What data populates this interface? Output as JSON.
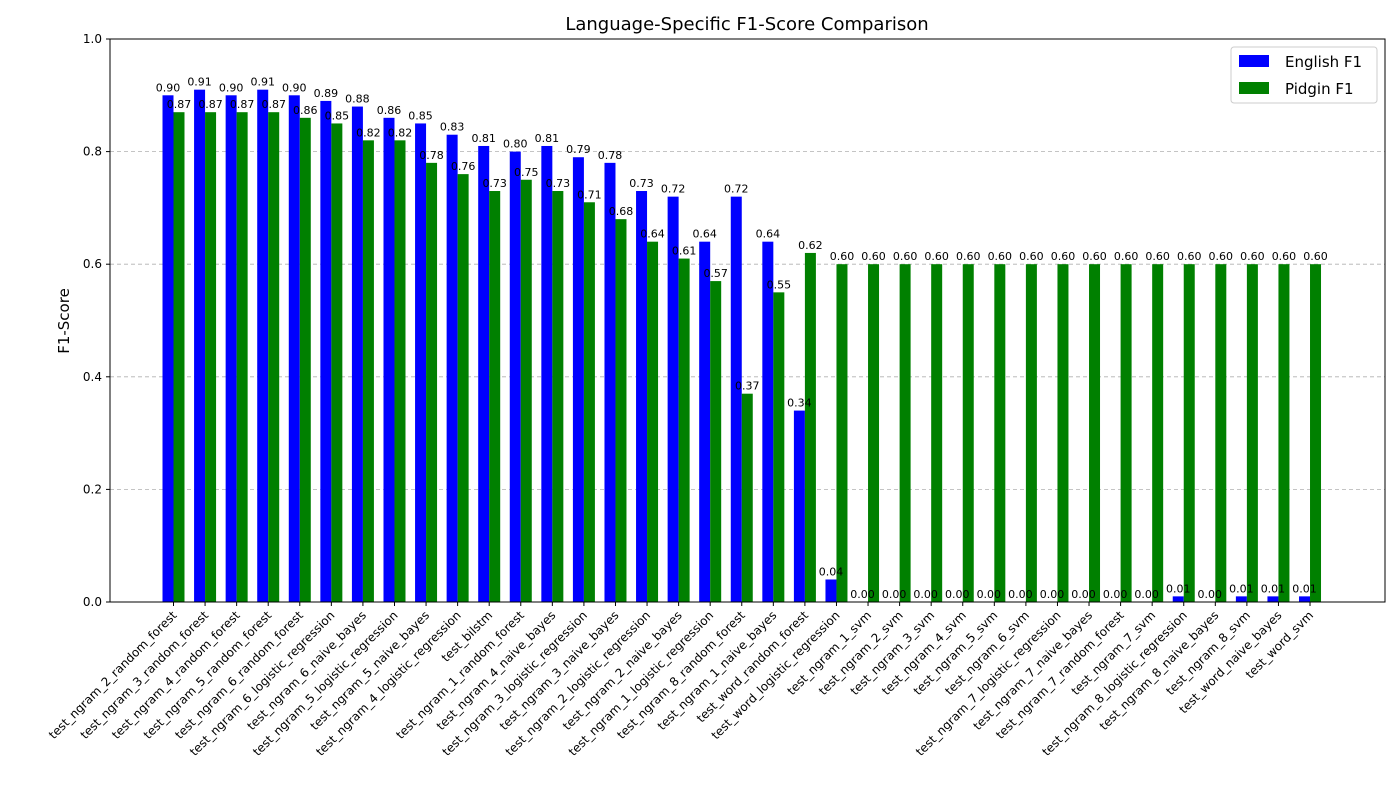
{
  "chart_data": {
    "type": "bar",
    "title": "Language-Specific F1-Score Comparison",
    "xlabel": "",
    "ylabel": "F1-Score",
    "ylim": [
      0,
      1.0
    ],
    "yticks": [
      "0.0",
      "0.2",
      "0.4",
      "0.6",
      "0.8",
      "1.0"
    ],
    "grid": "y-dashed",
    "legend_position": "top-right",
    "categories": [
      "test_ngram_2_random_forest",
      "test_ngram_3_random_forest",
      "test_ngram_4_random_forest",
      "test_ngram_5_random_forest",
      "test_ngram_6_random_forest",
      "test_ngram_6_logistic_regression",
      "test_ngram_6_naive_bayes",
      "test_ngram_5_logistic_regression",
      "test_ngram_5_naive_bayes",
      "test_ngram_4_logistic_regression",
      "test_bilstm",
      "test_ngram_1_random_forest",
      "test_ngram_4_naive_bayes",
      "test_ngram_3_logistic_regression",
      "test_ngram_3_naive_bayes",
      "test_ngram_2_logistic_regression",
      "test_ngram_2_naive_bayes",
      "test_ngram_1_logistic_regression",
      "test_ngram_8_random_forest",
      "test_ngram_1_naive_bayes",
      "test_word_random_forest",
      "test_word_logistic_regression",
      "test_ngram_1_svm",
      "test_ngram_2_svm",
      "test_ngram_3_svm",
      "test_ngram_4_svm",
      "test_ngram_5_svm",
      "test_ngram_6_svm",
      "test_ngram_7_logistic_regression",
      "test_ngram_7_naive_bayes",
      "test_ngram_7_random_forest",
      "test_ngram_7_svm",
      "test_ngram_8_logistic_regression",
      "test_ngram_8_naive_bayes",
      "test_ngram_8_svm",
      "test_word_naive_bayes",
      "test_word_svm"
    ],
    "series": [
      {
        "name": "English F1",
        "color": "#0000ff",
        "values": [
          0.9,
          0.91,
          0.9,
          0.91,
          0.9,
          0.89,
          0.88,
          0.86,
          0.85,
          0.83,
          0.81,
          0.8,
          0.81,
          0.79,
          0.78,
          0.73,
          0.72,
          0.64,
          0.72,
          0.64,
          0.34,
          0.04,
          0.0,
          0.0,
          0.0,
          0.0,
          0.0,
          0.0,
          0.0,
          0.0,
          0.0,
          0.0,
          0.01,
          0.0,
          0.01,
          0.01,
          0.01
        ]
      },
      {
        "name": "Pidgin F1",
        "color": "#008000",
        "values": [
          0.87,
          0.87,
          0.87,
          0.87,
          0.86,
          0.85,
          0.82,
          0.82,
          0.78,
          0.76,
          0.73,
          0.75,
          0.73,
          0.71,
          0.68,
          0.64,
          0.61,
          0.57,
          0.37,
          0.55,
          0.62,
          0.6,
          0.6,
          0.6,
          0.6,
          0.6,
          0.6,
          0.6,
          0.6,
          0.6,
          0.6,
          0.6,
          0.6,
          0.6,
          0.6,
          0.6,
          0.6
        ]
      }
    ]
  }
}
